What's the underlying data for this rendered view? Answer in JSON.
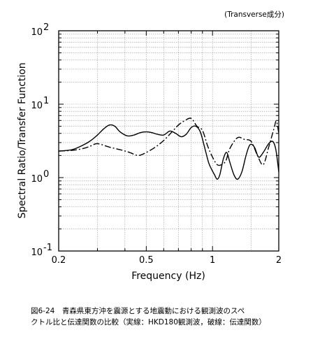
{
  "chart_data": {
    "type": "line",
    "xlabel": "Frequency (Hz)",
    "ylabel": "Spectral Ratio/Transfer Function",
    "annotation": "(Transverse成分)",
    "x_scale": "log",
    "y_scale": "log",
    "xlim": [
      0.2,
      2
    ],
    "ylim": [
      0.1,
      100
    ],
    "x_ticks": [
      {
        "value": 0.2,
        "label": "0.2"
      },
      {
        "value": 0.5,
        "label": "0.5"
      },
      {
        "value": 1,
        "label": "1"
      },
      {
        "value": 2,
        "label": "2"
      }
    ],
    "y_ticks": [
      {
        "value": 0.1,
        "base": "10",
        "exp": "-1"
      },
      {
        "value": 1,
        "base": "10",
        "exp": "0"
      },
      {
        "value": 10,
        "base": "10",
        "exp": "1"
      },
      {
        "value": 100,
        "base": "10",
        "exp": "2"
      }
    ],
    "grid": true,
    "series": [
      {
        "style": "solid",
        "x": [
          0.2,
          0.23,
          0.26,
          0.28,
          0.3,
          0.32,
          0.34,
          0.36,
          0.38,
          0.41,
          0.44,
          0.47,
          0.5,
          0.53,
          0.56,
          0.6,
          0.64,
          0.68,
          0.72,
          0.76,
          0.8,
          0.84,
          0.88,
          0.92,
          0.96,
          0.99,
          1.02,
          1.05,
          1.08,
          1.12,
          1.16,
          1.2,
          1.25,
          1.3,
          1.36,
          1.42,
          1.48,
          1.55,
          1.62,
          1.7,
          1.8,
          1.88,
          1.94,
          2.0
        ],
        "y": [
          2.3,
          2.4,
          2.8,
          3.2,
          3.8,
          4.6,
          5.2,
          5.0,
          4.2,
          3.7,
          3.8,
          4.1,
          4.2,
          4.1,
          3.9,
          3.8,
          4.3,
          4.0,
          3.6,
          3.9,
          4.8,
          5.0,
          4.2,
          2.6,
          1.6,
          1.3,
          1.1,
          0.95,
          1.1,
          1.8,
          2.2,
          1.6,
          1.1,
          0.95,
          1.2,
          2.0,
          2.8,
          2.6,
          1.9,
          2.2,
          2.9,
          3.1,
          2.4,
          1.2
        ]
      },
      {
        "style": "dash-dot",
        "x": [
          0.2,
          0.23,
          0.26,
          0.28,
          0.3,
          0.34,
          0.38,
          0.42,
          0.46,
          0.5,
          0.55,
          0.6,
          0.65,
          0.7,
          0.75,
          0.8,
          0.85,
          0.9,
          0.95,
          1.0,
          1.05,
          1.1,
          1.15,
          1.2,
          1.3,
          1.4,
          1.5,
          1.6,
          1.7,
          1.8,
          1.9,
          1.95,
          2.0
        ],
        "y": [
          2.3,
          2.35,
          2.5,
          2.7,
          2.9,
          2.6,
          2.4,
          2.2,
          2.0,
          2.2,
          2.6,
          3.2,
          4.1,
          5.2,
          6.0,
          6.4,
          5.0,
          4.4,
          2.7,
          1.9,
          1.5,
          1.5,
          1.7,
          2.5,
          3.5,
          3.3,
          3.1,
          2.0,
          1.5,
          2.6,
          4.6,
          5.9,
          4.0
        ]
      }
    ],
    "caption_line1": "図6-24　青森県東方沖を震源とする地震動における観測波のスペ",
    "caption_line2": "クトル比と伝達関数の比較（実線：HKD180観測波，破線：伝達関数）"
  }
}
